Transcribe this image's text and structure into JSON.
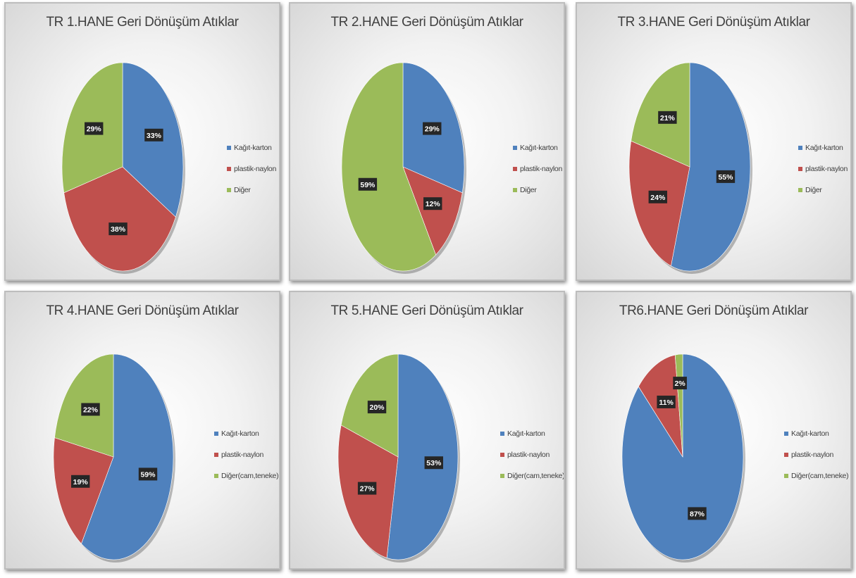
{
  "colors": {
    "blue": "#4f81bd",
    "red": "#c0504d",
    "green": "#9bbb59"
  },
  "chart_data": [
    {
      "type": "pie",
      "title": "TR 1.HANE Geri Dönüşüm Atıklar",
      "categories": [
        "Kağıt-karton",
        "plastik-naylon",
        "Diğer"
      ],
      "values": [
        33,
        38,
        29
      ],
      "labels": [
        "33%",
        "38%",
        "29%"
      ],
      "legend": "right"
    },
    {
      "type": "pie",
      "title": "TR 2.HANE Geri Dönüşüm Atıklar",
      "categories": [
        "Kağıt-karton",
        "plastik-naylon",
        "Diğer"
      ],
      "values": [
        29,
        12,
        59
      ],
      "labels": [
        "29%",
        "12%",
        "59%"
      ],
      "legend": "right"
    },
    {
      "type": "pie",
      "title": "TR 3.HANE Geri Dönüşüm Atıklar",
      "categories": [
        "Kağıt-karton",
        "plastik-naylon",
        "Diğer"
      ],
      "values": [
        55,
        24,
        21
      ],
      "labels": [
        "55%",
        "24%",
        "21%"
      ],
      "legend": "right"
    },
    {
      "type": "pie",
      "title": "TR 4.HANE Geri Dönüşüm Atıklar",
      "categories": [
        "Kağıt-karton",
        "plastik-naylon",
        "Diğer(cam,teneke)"
      ],
      "values": [
        59,
        19,
        22
      ],
      "labels": [
        "59%",
        "19%",
        "22%"
      ],
      "legend": "right"
    },
    {
      "type": "pie",
      "title": "TR 5.HANE Geri Dönüşüm Atıklar",
      "categories": [
        "Kağıt-karton",
        "plastik-naylon",
        "Diğer(cam,teneke)"
      ],
      "values": [
        53,
        27,
        20
      ],
      "labels": [
        "53%",
        "27%",
        "20%"
      ],
      "legend": "right"
    },
    {
      "type": "pie",
      "title": "TR6.HANE Geri Dönüşüm Atıklar",
      "categories": [
        "Kağıt-karton",
        "plastik-naylon",
        "Diğer(cam,teneke)"
      ],
      "values": [
        87,
        11,
        2
      ],
      "labels": [
        "87%",
        "11%",
        "2%"
      ],
      "legend": "right"
    }
  ]
}
